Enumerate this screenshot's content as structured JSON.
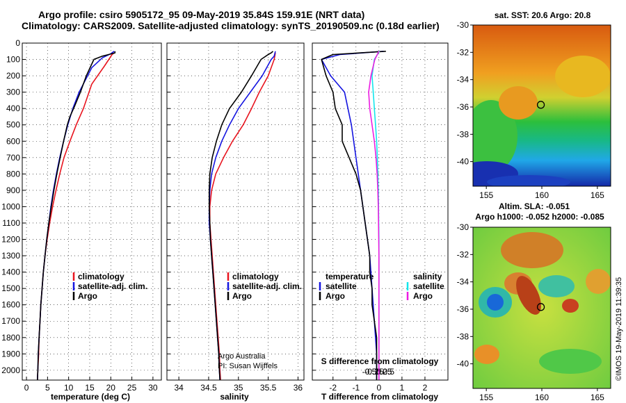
{
  "header": {
    "title_line1": "Argo profile: csiro 5905172_95 09-May-2019 35.84S 159.91E (NRT data)",
    "title_line2": "Climatology: CARS2009. Satellite-adjusted climatology: synTS_20190509.nc (0.18d earlier)"
  },
  "colors": {
    "climatology": "#e8141e",
    "satellite": "#1414e0",
    "argo": "#000000",
    "sat_salinity": "#12e6ec",
    "argo_salinity": "#ec1ce2"
  },
  "y_axis": {
    "ticks": [
      0,
      100,
      200,
      300,
      400,
      500,
      600,
      700,
      800,
      900,
      1000,
      1100,
      1200,
      1300,
      1400,
      1500,
      1600,
      1700,
      1800,
      1900,
      2000
    ],
    "range": [
      0,
      2060
    ]
  },
  "legend": {
    "climatology": "climatology",
    "satellite_adj": "satellite-adj. clim.",
    "argo": "Argo",
    "temperature": "temperature",
    "salinity": "salinity",
    "satellite": "satellite"
  },
  "credit": {
    "line1": "Argo Australia",
    "line2": "PI: Susan Wijffels"
  },
  "maps": {
    "sst_title": "sat. SST: 20.6 Argo: 20.8",
    "sla_title": "Altim. SLA: -0.051",
    "sla_subtitle": "Argo h1000: -0.052 h2000: -0.085",
    "lat_ticks": [
      -30,
      -32,
      -34,
      -36,
      -38,
      -40
    ],
    "lon_ticks": [
      155,
      160,
      165
    ],
    "float_position": {
      "lon": 159.91,
      "lat": -35.84
    },
    "stamp": "©IMOS 19-May-2019 11:39:35"
  },
  "chart_data": [
    {
      "type": "line",
      "name": "temperature",
      "xlabel": "temperature (deg C)",
      "xlim": [
        -1,
        32
      ],
      "xticks": [
        0,
        5,
        10,
        15,
        20,
        25,
        30
      ],
      "ylim": [
        2060,
        0
      ],
      "series": [
        {
          "name": "climatology",
          "color": "#e8141e",
          "points": [
            [
              20.8,
              60
            ],
            [
              20.3,
              70
            ],
            [
              18.5,
              140
            ],
            [
              15.5,
              250
            ],
            [
              13.5,
              400
            ],
            [
              11.8,
              500
            ],
            [
              10.3,
              600
            ],
            [
              8.9,
              700
            ],
            [
              7.9,
              800
            ],
            [
              7.0,
              900
            ],
            [
              6.2,
              1000
            ],
            [
              5.5,
              1100
            ],
            [
              4.9,
              1200
            ],
            [
              4.4,
              1300
            ],
            [
              4.0,
              1400
            ],
            [
              3.7,
              1500
            ],
            [
              3.4,
              1600
            ],
            [
              3.2,
              1700
            ],
            [
              3.0,
              1800
            ],
            [
              2.9,
              1900
            ],
            [
              2.7,
              2000
            ],
            [
              2.6,
              2060
            ]
          ]
        },
        {
          "name": "satellite-adj. clim.",
          "color": "#1414e0",
          "points": [
            [
              20.8,
              50
            ],
            [
              20.0,
              65
            ],
            [
              18.0,
              90
            ],
            [
              15.5,
              150
            ],
            [
              12.5,
              300
            ],
            [
              11.0,
              400
            ],
            [
              9.8,
              500
            ],
            [
              8.8,
              600
            ],
            [
              7.9,
              700
            ],
            [
              7.1,
              800
            ],
            [
              6.4,
              900
            ],
            [
              5.8,
              1000
            ],
            [
              5.3,
              1100
            ],
            [
              4.8,
              1200
            ],
            [
              4.4,
              1300
            ],
            [
              4.0,
              1400
            ],
            [
              3.7,
              1500
            ],
            [
              3.4,
              1600
            ],
            [
              3.2,
              1700
            ],
            [
              3.0,
              1800
            ],
            [
              2.8,
              1900
            ],
            [
              2.7,
              2000
            ],
            [
              2.6,
              2060
            ]
          ]
        },
        {
          "name": "Argo",
          "color": "#000000",
          "points": [
            [
              21.0,
              50
            ],
            [
              21.0,
              60
            ],
            [
              19.5,
              70
            ],
            [
              18.0,
              80
            ],
            [
              16.0,
              100
            ],
            [
              14.2,
              200
            ],
            [
              12.8,
              300
            ],
            [
              11.5,
              380
            ],
            [
              10.3,
              450
            ],
            [
              9.7,
              500
            ],
            [
              8.8,
              600
            ],
            [
              8.0,
              700
            ],
            [
              7.2,
              800
            ],
            [
              6.5,
              900
            ],
            [
              5.9,
              1000
            ],
            [
              5.3,
              1100
            ],
            [
              4.8,
              1200
            ],
            [
              4.4,
              1300
            ],
            [
              4.0,
              1400
            ],
            [
              3.7,
              1500
            ],
            [
              3.4,
              1600
            ],
            [
              3.2,
              1700
            ],
            [
              3.0,
              1800
            ],
            [
              2.8,
              1900
            ],
            [
              2.7,
              2000
            ],
            [
              2.6,
              2060
            ]
          ]
        }
      ]
    },
    {
      "type": "line",
      "name": "salinity",
      "xlabel": "salinity",
      "xlim": [
        33.8,
        36.1
      ],
      "xticks": [
        34,
        34.5,
        35,
        35.5,
        36
      ],
      "ylim": [
        2060,
        0
      ],
      "series": [
        {
          "name": "climatology",
          "color": "#e8141e",
          "points": [
            [
              35.62,
              60
            ],
            [
              35.6,
              100
            ],
            [
              35.5,
              200
            ],
            [
              35.35,
              300
            ],
            [
              35.22,
              400
            ],
            [
              35.08,
              500
            ],
            [
              34.9,
              600
            ],
            [
              34.75,
              700
            ],
            [
              34.62,
              800
            ],
            [
              34.55,
              900
            ],
            [
              34.52,
              1000
            ],
            [
              34.52,
              1100
            ],
            [
              34.54,
              1200
            ],
            [
              34.56,
              1300
            ],
            [
              34.58,
              1400
            ],
            [
              34.6,
              1500
            ],
            [
              34.62,
              1600
            ],
            [
              34.64,
              1700
            ],
            [
              34.66,
              1800
            ],
            [
              34.68,
              1900
            ],
            [
              34.69,
              2000
            ],
            [
              34.7,
              2060
            ]
          ]
        },
        {
          "name": "satellite-adj. clim.",
          "color": "#1414e0",
          "points": [
            [
              35.62,
              50
            ],
            [
              35.6,
              80
            ],
            [
              35.55,
              100
            ],
            [
              35.4,
              200
            ],
            [
              35.2,
              300
            ],
            [
              35.0,
              400
            ],
            [
              34.85,
              500
            ],
            [
              34.72,
              600
            ],
            [
              34.62,
              700
            ],
            [
              34.55,
              800
            ],
            [
              34.52,
              900
            ],
            [
              34.51,
              1000
            ],
            [
              34.51,
              1100
            ],
            [
              34.53,
              1200
            ],
            [
              34.55,
              1300
            ],
            [
              34.57,
              1400
            ],
            [
              34.59,
              1500
            ],
            [
              34.61,
              1600
            ],
            [
              34.63,
              1700
            ],
            [
              34.65,
              1800
            ],
            [
              34.67,
              1900
            ],
            [
              34.68,
              2000
            ],
            [
              34.69,
              2060
            ]
          ]
        },
        {
          "name": "Argo",
          "color": "#000000",
          "points": [
            [
              35.58,
              50
            ],
            [
              35.55,
              60
            ],
            [
              35.5,
              70
            ],
            [
              35.38,
              100
            ],
            [
              35.22,
              200
            ],
            [
              35.05,
              300
            ],
            [
              34.85,
              400
            ],
            [
              34.72,
              500
            ],
            [
              34.63,
              600
            ],
            [
              34.56,
              700
            ],
            [
              34.52,
              800
            ],
            [
              34.51,
              900
            ],
            [
              34.51,
              1000
            ],
            [
              34.52,
              1100
            ],
            [
              34.53,
              1200
            ],
            [
              34.55,
              1300
            ],
            [
              34.57,
              1400
            ],
            [
              34.59,
              1500
            ],
            [
              34.61,
              1600
            ],
            [
              34.63,
              1700
            ],
            [
              34.65,
              1800
            ],
            [
              34.67,
              1900
            ],
            [
              34.68,
              2000
            ],
            [
              34.69,
              2060
            ]
          ]
        }
      ]
    },
    {
      "type": "line",
      "name": "difference",
      "xlabel": "T difference from climatology",
      "x2label": "S difference from climatology",
      "xlim": [
        -2.9,
        3.0
      ],
      "xticks": [
        -2,
        -1,
        0,
        1,
        2
      ],
      "x2ticks": [
        -0.5,
        -0.25,
        0,
        0.25,
        0.5
      ],
      "ylim": [
        2060,
        0
      ],
      "series": [
        {
          "name": "temperature satellite",
          "color": "#1414e0",
          "points": [
            [
              0.2,
              50
            ],
            [
              -0.7,
              60
            ],
            [
              -1.7,
              70
            ],
            [
              -2.5,
              100
            ],
            [
              -2.1,
              200
            ],
            [
              -1.5,
              300
            ],
            [
              -1.2,
              500
            ],
            [
              -1.0,
              700
            ],
            [
              -0.8,
              900
            ],
            [
              -0.6,
              1100
            ],
            [
              -0.4,
              1300
            ],
            [
              -0.3,
              1500
            ],
            [
              -0.2,
              1700
            ],
            [
              -0.1,
              1900
            ],
            [
              -0.1,
              2060
            ]
          ]
        },
        {
          "name": "temperature Argo",
          "color": "#000000",
          "points": [
            [
              0.3,
              50
            ],
            [
              -0.8,
              60
            ],
            [
              -2.0,
              70
            ],
            [
              -2.5,
              100
            ],
            [
              -2.3,
              200
            ],
            [
              -2.0,
              300
            ],
            [
              -1.9,
              400
            ],
            [
              -1.6,
              500
            ],
            [
              -1.6,
              600
            ],
            [
              -1.3,
              700
            ],
            [
              -1.0,
              800
            ],
            [
              -0.8,
              900
            ],
            [
              -0.7,
              1000
            ],
            [
              -0.6,
              1100
            ],
            [
              -0.5,
              1200
            ],
            [
              -0.4,
              1300
            ],
            [
              -0.4,
              1400
            ],
            [
              -0.3,
              1500
            ],
            [
              -0.3,
              1600
            ],
            [
              -0.2,
              1700
            ],
            [
              -0.1,
              1800
            ],
            [
              -0.1,
              2060
            ]
          ]
        },
        {
          "name": "salinity satellite",
          "color": "#12e6ec",
          "points": [
            [
              0.02,
              50
            ],
            [
              -0.2,
              100
            ],
            [
              -0.3,
              200
            ],
            [
              -0.25,
              300
            ],
            [
              -0.2,
              400
            ],
            [
              -0.15,
              500
            ],
            [
              -0.1,
              600
            ],
            [
              -0.07,
              700
            ],
            [
              -0.05,
              800
            ],
            [
              -0.03,
              900
            ],
            [
              -0.02,
              1000
            ],
            [
              0.0,
              1200
            ],
            [
              0.0,
              1500
            ],
            [
              0.0,
              2060
            ]
          ]
        },
        {
          "name": "salinity Argo",
          "color": "#ec1ce2",
          "points": [
            [
              0.0,
              50
            ],
            [
              -0.18,
              100
            ],
            [
              -0.35,
              200
            ],
            [
              -0.45,
              300
            ],
            [
              -0.4,
              400
            ],
            [
              -0.3,
              500
            ],
            [
              -0.2,
              600
            ],
            [
              -0.13,
              700
            ],
            [
              -0.08,
              800
            ],
            [
              -0.05,
              900
            ],
            [
              -0.03,
              1000
            ],
            [
              -0.02,
              1100
            ],
            [
              0.0,
              1300
            ],
            [
              0.0,
              1500
            ],
            [
              0.0,
              2060
            ]
          ]
        }
      ]
    }
  ]
}
